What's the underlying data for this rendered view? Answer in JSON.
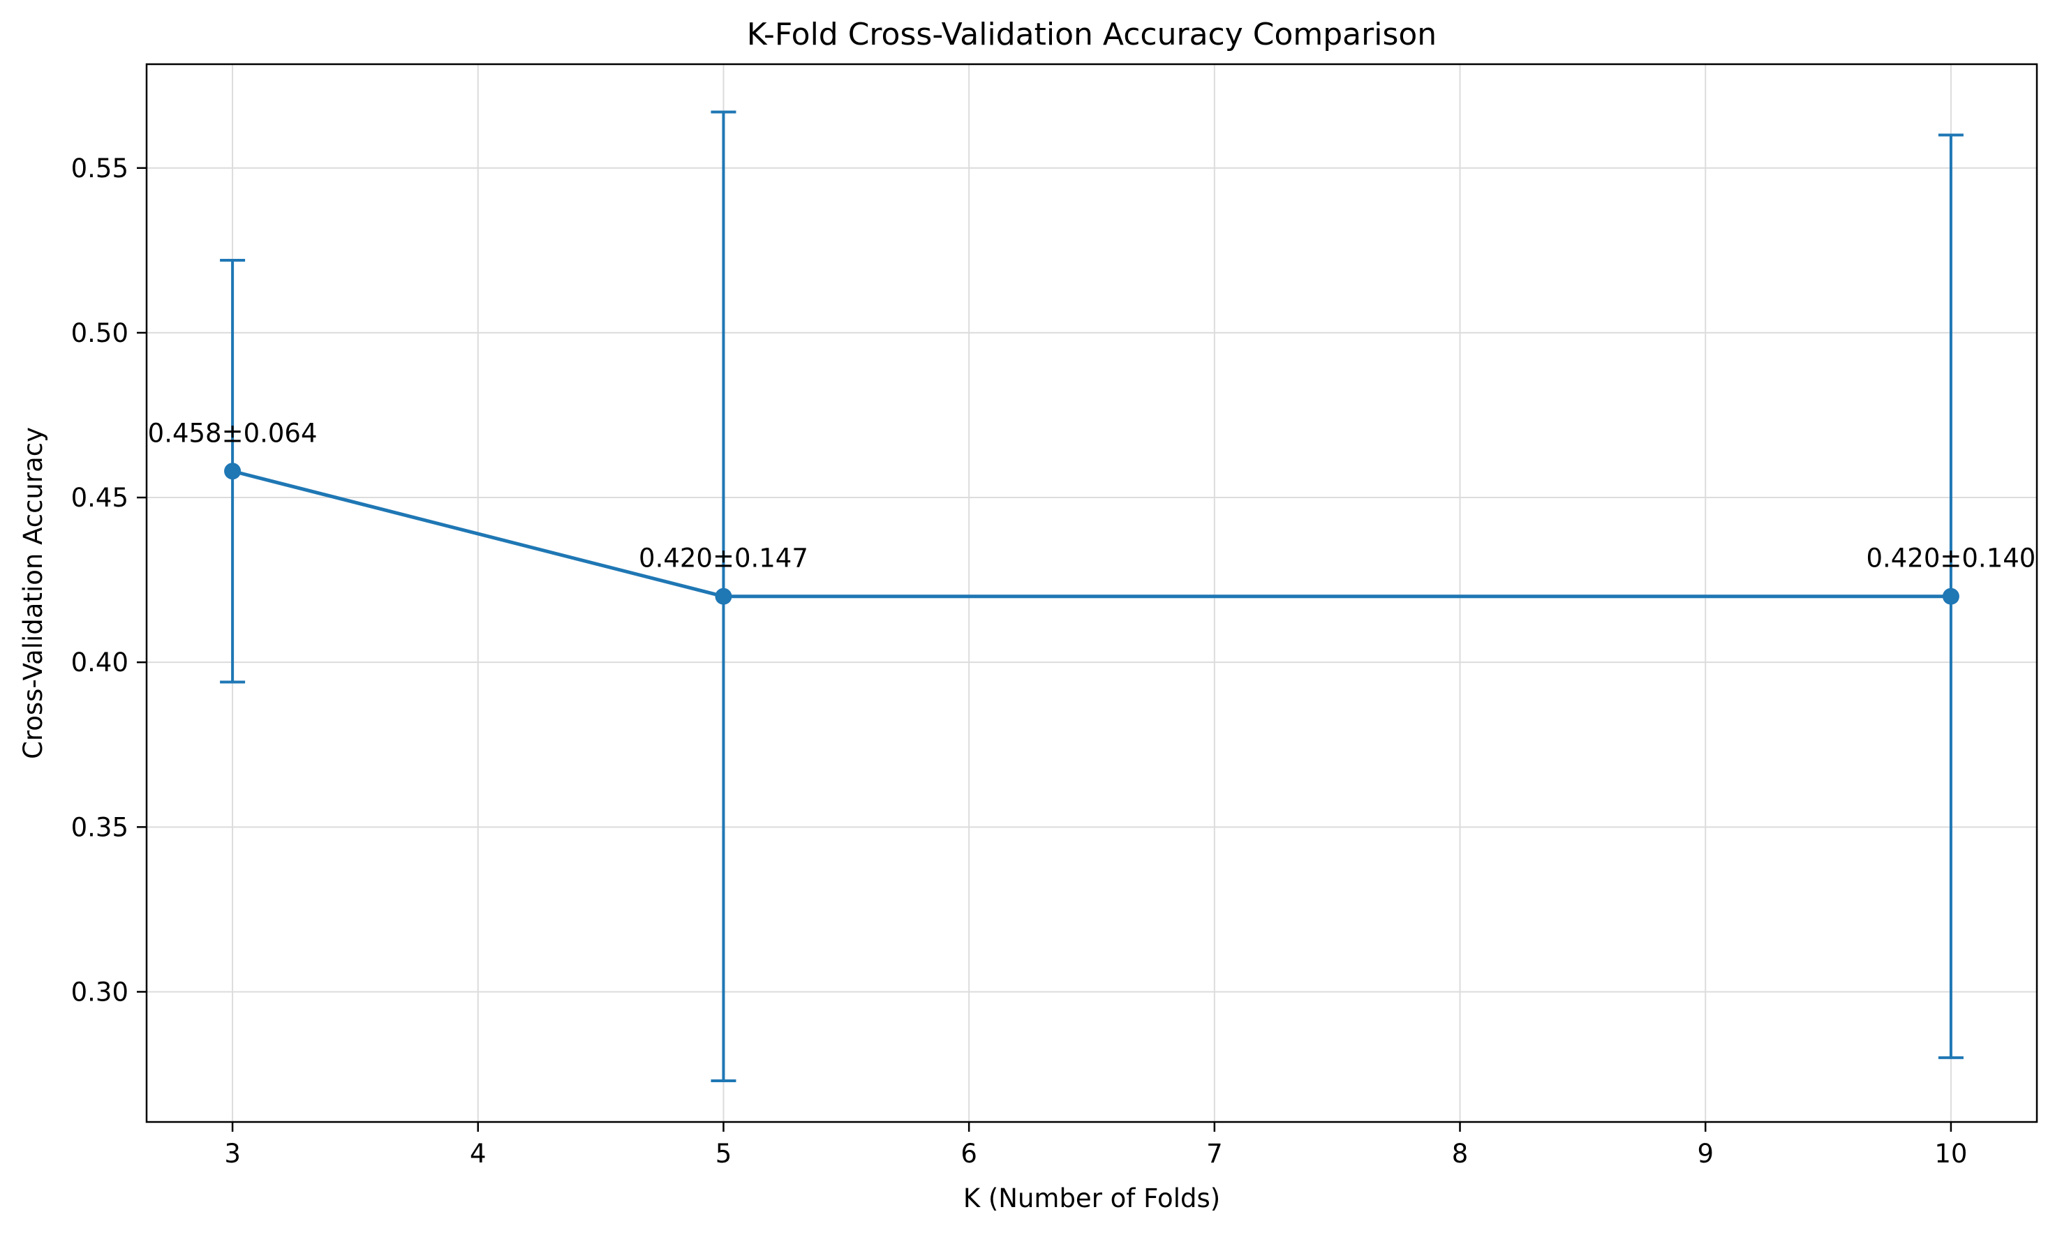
{
  "chart_data": {
    "type": "line",
    "title": "K-Fold Cross-Validation Accuracy Comparison",
    "xlabel": "K (Number of Folds)",
    "ylabel": "Cross-Validation Accuracy",
    "xlim": [
      2.65,
      10.35
    ],
    "ylim": [
      0.2605,
      0.5815
    ],
    "xticks": [
      3,
      4,
      5,
      6,
      7,
      8,
      9,
      10
    ],
    "yticks": [
      0.3,
      0.35,
      0.4,
      0.45,
      0.5,
      0.55
    ],
    "ytick_labels": [
      "0.30",
      "0.35",
      "0.40",
      "0.45",
      "0.50",
      "0.55"
    ],
    "grid": true,
    "legend": "none",
    "series": [
      {
        "color": "#1f77b4",
        "x": [
          3,
          5,
          10
        ],
        "y": [
          0.458,
          0.42,
          0.42
        ],
        "error": [
          0.064,
          0.147,
          0.14
        ],
        "labels": [
          "0.458±0.064",
          "0.420±0.147",
          "0.420±0.140"
        ]
      }
    ]
  }
}
